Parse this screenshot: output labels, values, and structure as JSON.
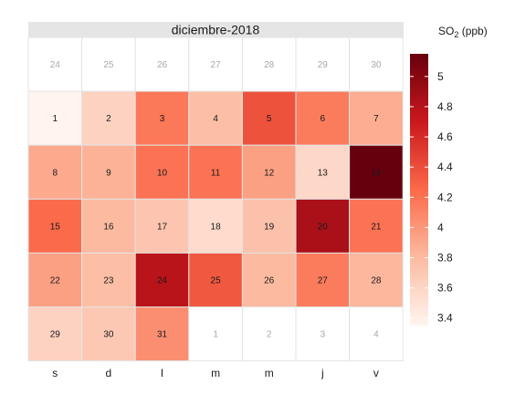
{
  "chart_data": {
    "type": "heatmap",
    "title": "diciembre-2018",
    "weekday_labels": [
      "s",
      "d",
      "l",
      "m",
      "m",
      "j",
      "v"
    ],
    "legend": {
      "title_main": "SO",
      "title_sub": "2",
      "title_unit": " (ppb)",
      "range": [
        3.35,
        5.15
      ],
      "ticks": [
        "3.4",
        "3.6",
        "3.8",
        "4",
        "4.2",
        "4.4",
        "4.6",
        "4.8",
        "5"
      ],
      "colors": [
        "#fff5f0",
        "#fcbba1",
        "#fb6a4a",
        "#cb181d",
        "#67000d"
      ]
    },
    "leading_days": [
      "24",
      "25",
      "26",
      "27",
      "28",
      "29",
      "30"
    ],
    "trailing_days": [
      "1",
      "2",
      "3",
      "4"
    ],
    "days": [
      {
        "day": "1",
        "value": 3.36
      },
      {
        "day": "2",
        "value": 3.62
      },
      {
        "day": "3",
        "value": 4.17
      },
      {
        "day": "4",
        "value": 3.77
      },
      {
        "day": "5",
        "value": 4.38
      },
      {
        "day": "6",
        "value": 4.15
      },
      {
        "day": "7",
        "value": 3.88
      },
      {
        "day": "8",
        "value": 3.9
      },
      {
        "day": "9",
        "value": 3.85
      },
      {
        "day": "10",
        "value": 4.2
      },
      {
        "day": "11",
        "value": 4.2
      },
      {
        "day": "12",
        "value": 3.95
      },
      {
        "day": "13",
        "value": 3.58
      },
      {
        "day": "14",
        "value": 5.15
      },
      {
        "day": "15",
        "value": 4.25
      },
      {
        "day": "16",
        "value": 3.8
      },
      {
        "day": "17",
        "value": 3.72
      },
      {
        "day": "18",
        "value": 3.55
      },
      {
        "day": "19",
        "value": 3.75
      },
      {
        "day": "20",
        "value": 4.85
      },
      {
        "day": "21",
        "value": 4.2
      },
      {
        "day": "22",
        "value": 3.95
      },
      {
        "day": "23",
        "value": 3.78
      },
      {
        "day": "24",
        "value": 4.78
      },
      {
        "day": "25",
        "value": 4.35
      },
      {
        "day": "26",
        "value": 3.8
      },
      {
        "day": "27",
        "value": 4.15
      },
      {
        "day": "28",
        "value": 3.82
      },
      {
        "day": "29",
        "value": 3.62
      },
      {
        "day": "30",
        "value": 3.7
      },
      {
        "day": "31",
        "value": 4.05
      }
    ]
  }
}
